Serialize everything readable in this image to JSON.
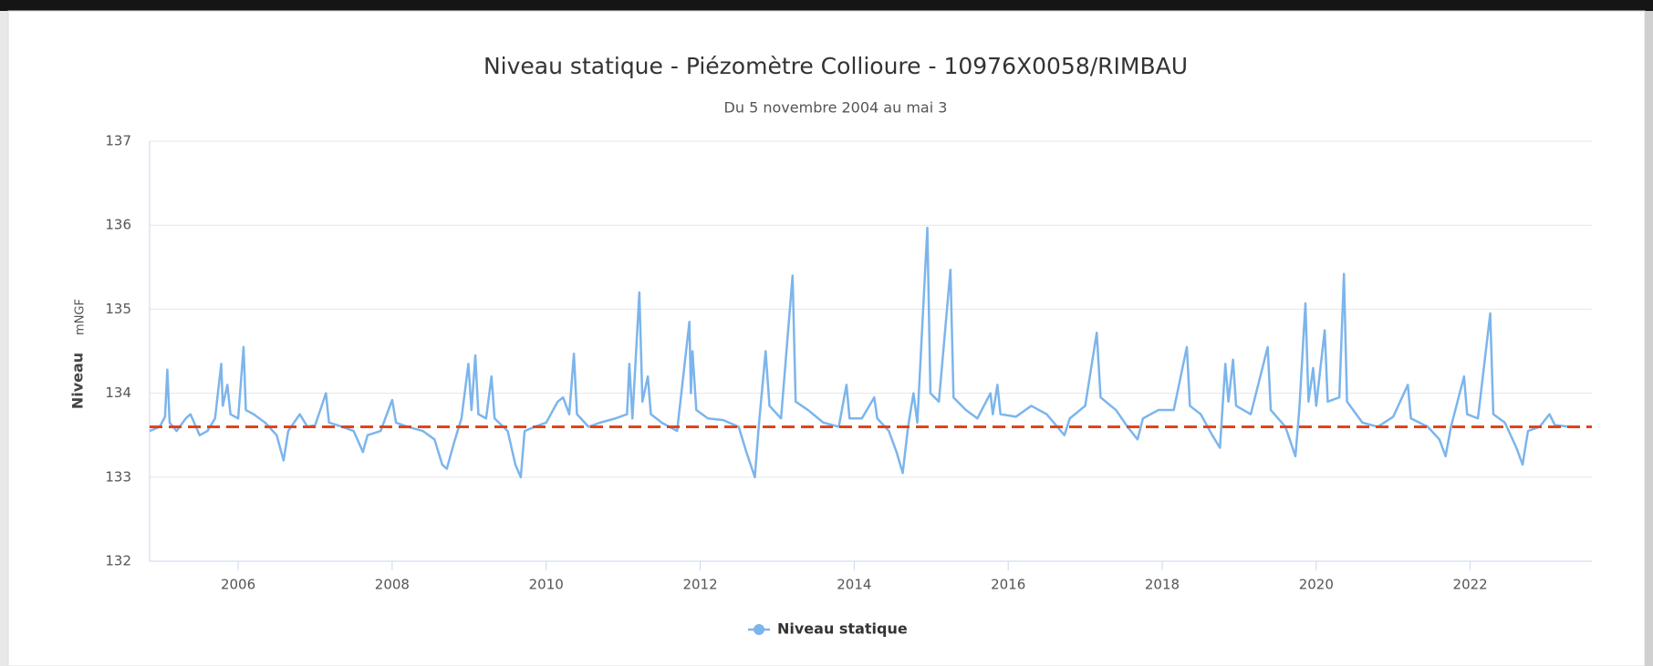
{
  "chart_data": {
    "type": "line",
    "title": "Niveau statique - Piézomètre Collioure - 10976X0058/RIMBAU",
    "subtitle": "Du 5 novembre 2004 au mai 3",
    "y_label": "Niveau",
    "y_unit": "mNGF",
    "xlim": [
      2004.85,
      2023.58
    ],
    "xticks": [
      2006,
      2008,
      2010,
      2012,
      2014,
      2016,
      2018,
      2020,
      2022
    ],
    "ylim": [
      132,
      137
    ],
    "yticks": [
      132,
      133,
      134,
      135,
      136,
      137
    ],
    "grid": true,
    "legend": "bottom",
    "reference_line": {
      "value": 133.6,
      "color": "#e0441c"
    },
    "x": [
      2004.85,
      2004.98,
      2005.05,
      2005.08,
      2005.11,
      2005.2,
      2005.32,
      2005.38,
      2005.5,
      2005.6,
      2005.7,
      2005.78,
      2005.8,
      2005.86,
      2005.9,
      2006.0,
      2006.07,
      2006.1,
      2006.2,
      2006.35,
      2006.5,
      2006.59,
      2006.65,
      2006.8,
      2006.9,
      2007.0,
      2007.14,
      2007.18,
      2007.35,
      2007.5,
      2007.62,
      2007.68,
      2007.85,
      2008.0,
      2008.05,
      2008.2,
      2008.4,
      2008.55,
      2008.65,
      2008.71,
      2008.8,
      2008.9,
      2008.99,
      2009.03,
      2009.08,
      2009.12,
      2009.22,
      2009.29,
      2009.33,
      2009.5,
      2009.6,
      2009.67,
      2009.72,
      2009.85,
      2010.0,
      2010.15,
      2010.22,
      2010.3,
      2010.36,
      2010.4,
      2010.55,
      2010.7,
      2010.9,
      2011.05,
      2011.08,
      2011.12,
      2011.21,
      2011.25,
      2011.32,
      2011.36,
      2011.5,
      2011.7,
      2011.86,
      2011.88,
      2011.9,
      2011.95,
      2012.1,
      2012.3,
      2012.5,
      2012.6,
      2012.71,
      2012.76,
      2012.85,
      2012.9,
      2013.05,
      2013.2,
      2013.24,
      2013.4,
      2013.6,
      2013.8,
      2013.9,
      2013.94,
      2014.1,
      2014.26,
      2014.3,
      2014.45,
      2014.55,
      2014.63,
      2014.7,
      2014.77,
      2014.82,
      2014.95,
      2014.99,
      2015.1,
      2015.25,
      2015.29,
      2015.45,
      2015.6,
      2015.77,
      2015.8,
      2015.86,
      2015.9,
      2016.1,
      2016.3,
      2016.5,
      2016.73,
      2016.8,
      2017.0,
      2017.15,
      2017.2,
      2017.4,
      2017.55,
      2017.68,
      2017.75,
      2017.95,
      2018.15,
      2018.32,
      2018.36,
      2018.5,
      2018.65,
      2018.75,
      2018.82,
      2018.86,
      2018.92,
      2018.96,
      2019.15,
      2019.37,
      2019.41,
      2019.6,
      2019.73,
      2019.78,
      2019.86,
      2019.9,
      2019.96,
      2020.0,
      2020.11,
      2020.15,
      2020.3,
      2020.36,
      2020.4,
      2020.6,
      2020.8,
      2021.0,
      2021.19,
      2021.23,
      2021.45,
      2021.6,
      2021.68,
      2021.75,
      2021.92,
      2021.96,
      2022.1,
      2022.26,
      2022.3,
      2022.45,
      2022.6,
      2022.68,
      2022.75,
      2022.9,
      2023.03,
      2023.1,
      2023.3
    ],
    "series": [
      {
        "name": "Niveau statique",
        "color": "#7cb5ec",
        "values": [
          133.55,
          133.6,
          133.72,
          134.28,
          133.65,
          133.55,
          133.7,
          133.75,
          133.5,
          133.55,
          133.7,
          134.35,
          133.85,
          134.1,
          133.75,
          133.7,
          134.55,
          133.8,
          133.75,
          133.65,
          133.5,
          133.2,
          133.55,
          133.75,
          133.6,
          133.62,
          134.0,
          133.65,
          133.6,
          133.55,
          133.3,
          133.5,
          133.55,
          133.92,
          133.65,
          133.6,
          133.55,
          133.45,
          133.15,
          133.1,
          133.4,
          133.7,
          134.35,
          133.8,
          134.45,
          133.75,
          133.7,
          134.2,
          133.7,
          133.55,
          133.15,
          133.0,
          133.55,
          133.6,
          133.65,
          133.9,
          133.95,
          133.75,
          134.47,
          133.75,
          133.6,
          133.65,
          133.7,
          133.75,
          134.35,
          133.7,
          135.2,
          133.9,
          134.2,
          133.75,
          133.65,
          133.55,
          134.85,
          134.0,
          134.5,
          133.8,
          133.7,
          133.68,
          133.6,
          133.3,
          133.0,
          133.6,
          134.5,
          133.85,
          133.7,
          135.4,
          133.9,
          133.8,
          133.65,
          133.6,
          134.1,
          133.7,
          133.7,
          133.95,
          133.7,
          133.55,
          133.3,
          133.05,
          133.6,
          134.0,
          133.65,
          135.97,
          134.0,
          133.9,
          135.47,
          133.95,
          133.8,
          133.7,
          134.0,
          133.75,
          134.1,
          133.75,
          133.72,
          133.85,
          133.75,
          133.5,
          133.7,
          133.85,
          134.72,
          133.95,
          133.8,
          133.6,
          133.45,
          133.7,
          133.8,
          133.8,
          134.55,
          133.85,
          133.75,
          133.5,
          133.35,
          134.35,
          133.9,
          134.4,
          133.85,
          133.75,
          134.55,
          133.8,
          133.6,
          133.25,
          133.8,
          135.07,
          133.9,
          134.3,
          133.85,
          134.75,
          133.9,
          133.95,
          135.42,
          133.9,
          133.65,
          133.6,
          133.72,
          134.1,
          133.7,
          133.6,
          133.45,
          133.25,
          133.6,
          134.2,
          133.75,
          133.7,
          134.95,
          133.75,
          133.65,
          133.35,
          133.15,
          133.55,
          133.6,
          133.75,
          133.62,
          133.6
        ]
      }
    ]
  }
}
